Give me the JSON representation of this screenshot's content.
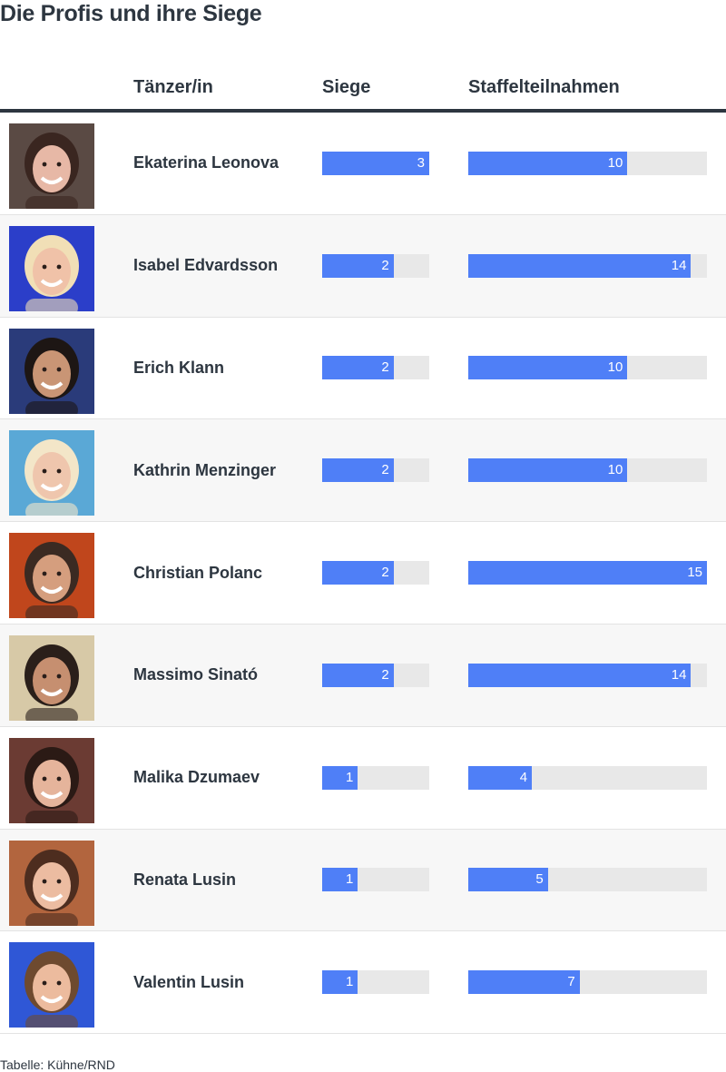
{
  "title": "Die Profis und ihre Siege",
  "source": "Tabelle: Kühne/RND",
  "chart_data": {
    "type": "table",
    "columns": [
      "",
      "Tänzer/in",
      "Siege",
      "Staffelteilnahmen"
    ],
    "siege_max": 3,
    "staffel_max": 15,
    "rows": [
      {
        "name": "Ekaterina Leonova",
        "siege": 3,
        "staffel": 10
      },
      {
        "name": "Isabel Edvardsson",
        "siege": 2,
        "staffel": 14
      },
      {
        "name": "Erich Klann",
        "siege": 2,
        "staffel": 10
      },
      {
        "name": "Kathrin Menzinger",
        "siege": 2,
        "staffel": 10
      },
      {
        "name": "Christian Polanc",
        "siege": 2,
        "staffel": 15
      },
      {
        "name": "Massimo Sinató",
        "siege": 2,
        "staffel": 14
      },
      {
        "name": "Malika Dzumaev",
        "siege": 1,
        "staffel": 4
      },
      {
        "name": "Renata Lusin",
        "siege": 1,
        "staffel": 5
      },
      {
        "name": "Valentin Lusin",
        "siege": 1,
        "staffel": 7
      }
    ]
  },
  "colors": {
    "bar": "#4f7ff7",
    "track": "#e8e8e8",
    "text": "#2d3640"
  },
  "avatars": [
    {
      "bg": "#5a4a44",
      "skin": "#e7b8a6",
      "hair": "#3a2620"
    },
    {
      "bg": "#2b3ec9",
      "skin": "#f0c2a8",
      "hair": "#f1dfb6"
    },
    {
      "bg": "#2a3b7a",
      "skin": "#c99575",
      "hair": "#1d1614"
    },
    {
      "bg": "#5aa8d6",
      "skin": "#efc6ad",
      "hair": "#f3e6c8"
    },
    {
      "bg": "#c0461c",
      "skin": "#d59e7e",
      "hair": "#3b2a22"
    },
    {
      "bg": "#d7c9a7",
      "skin": "#c68f70",
      "hair": "#2a1f1a"
    },
    {
      "bg": "#6b3b33",
      "skin": "#e5b49b",
      "hair": "#2b1a15"
    },
    {
      "bg": "#b2653e",
      "skin": "#ecbca1",
      "hair": "#4d2d1f"
    },
    {
      "bg": "#2f57d6",
      "skin": "#ecbb9e",
      "hair": "#6e4a2f"
    }
  ]
}
